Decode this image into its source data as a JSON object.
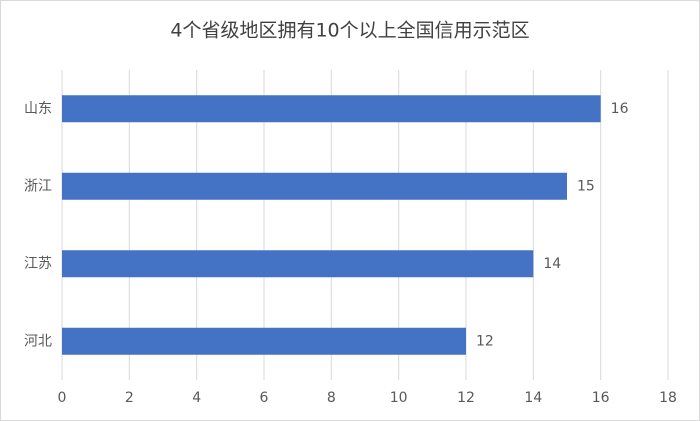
{
  "chart_data": {
    "type": "bar",
    "title": "4个省级地区拥有10个以上全国信用示范区",
    "categories": [
      "山东",
      "浙江",
      "江苏",
      "河北"
    ],
    "values": [
      16,
      15,
      14,
      12
    ],
    "color": "#4472c4",
    "xlim": [
      0,
      18
    ],
    "xticks": [
      0,
      2,
      4,
      6,
      8,
      10,
      12,
      14,
      16,
      18
    ],
    "grid": true
  }
}
